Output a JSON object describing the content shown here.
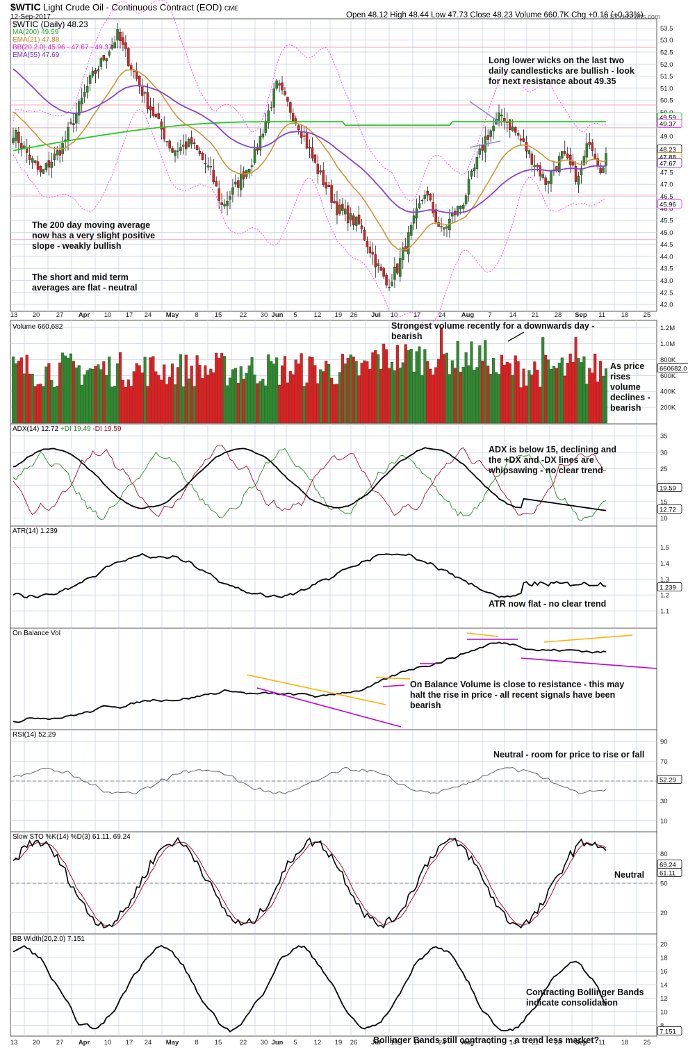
{
  "header": {
    "symbol": "$WTIC",
    "name": "Light Crude Oil - Continuous Contract (EOD)",
    "exchange": "CME",
    "date": "12-Sep-2017",
    "ohlc": "Open 48.12  High 48.44  Low 47.73  Close 48.23  Volume 660.7K  Chg +0.16 (+0.33%)",
    "watermark": "© StockCharts.com"
  },
  "colors": {
    "up": "#2e8b2e",
    "down": "#e02020",
    "ma200": "#22cc22",
    "ema21": "#cc9933",
    "ema55": "#8844cc",
    "bb": "#ff44ff",
    "grid": "#c8d4e4",
    "orange": "#ffb000",
    "purple": "#bb00dd"
  },
  "xaxis": {
    "labels": [
      "13",
      "20",
      "27",
      "Apr",
      "10",
      "17",
      "24",
      "May",
      "8",
      "15",
      "22",
      "30",
      "Jun",
      "5",
      "12",
      "19",
      "26",
      "Jul",
      "10",
      "17",
      "24",
      "Aug",
      "7",
      "14",
      "21",
      "28",
      "Sep",
      "11",
      "18",
      "25"
    ]
  },
  "price_panel": {
    "legend": [
      "$WTIC (Daily) 48.23",
      "MA(200) 49.59",
      "EMA(21) 47.88",
      "BB(20,2.0) 45.96 - 47.67 - 49.37",
      "EMA(55) 47.69"
    ],
    "ticks": [
      "53.5",
      "53.0",
      "52.5",
      "52.0",
      "51.5",
      "51.0",
      "50.5",
      "50.0",
      "49.5",
      "49.0",
      "48.5",
      "48.0",
      "47.5",
      "47.0",
      "46.5",
      "46.0",
      "45.5",
      "45.0",
      "44.5",
      "44.0",
      "43.5",
      "43.0",
      "42.5",
      "42.0"
    ],
    "tags": [
      "49.59",
      "49.37",
      "48.23",
      "47.88",
      "47.67",
      "45.96"
    ],
    "annotations": {
      "wicks": [
        "Long lower wicks on the last two",
        "daily candlesticks are bullish - look",
        "for next resistance about 49.35"
      ],
      "ma200": [
        "The 200 day moving average",
        "now has a very slight positive",
        "slope - weakly bullish"
      ],
      "short": [
        "The short and mid term",
        "averages are flat - neutral"
      ]
    }
  },
  "volume_panel": {
    "legend": "Volume 660,682",
    "ticks": [
      "1.2M",
      "1.0M",
      "800K",
      "600K",
      "400K",
      "200K"
    ],
    "tag": "660682.0",
    "annotations": {
      "strongest": [
        "Strongest volume recently for a downwards day -",
        "bearish"
      ],
      "rises": [
        "As price",
        "rises",
        "volume",
        "declines -",
        "bearish"
      ]
    }
  },
  "adx_panel": {
    "legend": [
      "ADX(14) 12.72",
      "+DI 19.49",
      "-DI 19.59"
    ],
    "ticks": [
      "35",
      "30",
      "25",
      "20",
      "15",
      "10"
    ],
    "tags": [
      "19.59",
      "12.72"
    ],
    "annotation": [
      "ADX is below 15, declining and",
      "the +DX and -DX lines are",
      "whipsawing - no clear trend"
    ]
  },
  "atr_panel": {
    "legend": "ATR(14) 1.239",
    "ticks": [
      "1.5",
      "1.4",
      "1.3",
      "1.2",
      "1.1"
    ],
    "tag": "1.239",
    "annotation": "ATR now flat - no clear trend"
  },
  "obv_panel": {
    "legend": "On Balance Vol",
    "annotation": [
      "On Balance Volume is close to resistance - this may",
      "halt the rise in price - all recent signals have been",
      "bearish"
    ]
  },
  "rsi_panel": {
    "legend": "RSI(14) 52.29",
    "ticks": [
      "90",
      "70",
      "50",
      "30",
      "10"
    ],
    "tag": "52.29",
    "annotation": "Neutral - room for price to rise or fall"
  },
  "sto_panel": {
    "legend": "Slow STO %K(14) %D(3) 61.11, 69.24",
    "ticks": [
      "80",
      "50",
      "20"
    ],
    "tags": [
      "69.24",
      "61.11"
    ],
    "annotation": "Neutral"
  },
  "bbw_panel": {
    "legend": "BB Width(20,2.0) 7.151",
    "ticks": [
      "20",
      "18",
      "16",
      "14",
      "12",
      "10",
      "8"
    ],
    "tag": "7.151",
    "annotations": {
      "contracting": [
        "Contracting Bollinger Bands",
        "indicate consolidation"
      ],
      "still": "Bollinger Bands still contracting - a trend less market?"
    }
  },
  "chart_data": {
    "type": "line",
    "title": "$WTIC Light Crude Oil - Continuous Contract (EOD)",
    "x": [
      "Mar 13",
      "Mar 20",
      "Mar 27",
      "Apr 3",
      "Apr 10",
      "Apr 17",
      "Apr 24",
      "May 1",
      "May 8",
      "May 15",
      "May 22",
      "May 30",
      "Jun 5",
      "Jun 12",
      "Jun 19",
      "Jun 26",
      "Jul 3",
      "Jul 10",
      "Jul 17",
      "Jul 24",
      "Aug 1",
      "Aug 7",
      "Aug 14",
      "Aug 21",
      "Aug 28",
      "Sep 5",
      "Sep 11"
    ],
    "series": [
      {
        "name": "$WTIC (Daily)",
        "values": [
          48.8,
          47.5,
          48.3,
          50.5,
          53.0,
          52.5,
          49.6,
          48.8,
          46.5,
          48.5,
          51.0,
          49.2,
          47.8,
          46.0,
          43.5,
          43.2,
          46.5,
          45.2,
          46.8,
          48.8,
          49.6,
          49.4,
          48.4,
          47.7,
          47.2,
          49.0,
          48.23
        ]
      },
      {
        "name": "MA(200)",
        "values": [
          48.5,
          48.6,
          48.7,
          48.8,
          49.0,
          49.1,
          49.2,
          49.3,
          49.4,
          49.4,
          49.4,
          49.6,
          49.6,
          49.5,
          49.4,
          49.2,
          49.0,
          49.0,
          49.2,
          49.3,
          49.4,
          49.5,
          49.4,
          49.5,
          49.6,
          49.6,
          49.59
        ]
      },
      {
        "name": "EMA(21)",
        "values": [
          49.7,
          48.4,
          48.1,
          49.0,
          51.0,
          51.3,
          50.6,
          49.6,
          48.6,
          48.0,
          49.6,
          49.5,
          49.0,
          47.6,
          45.5,
          45.0,
          45.3,
          45.5,
          46.0,
          47.4,
          48.3,
          48.6,
          48.2,
          48.0,
          47.5,
          47.8,
          47.88
        ]
      },
      {
        "name": "EMA(55)",
        "values": [
          51.4,
          50.3,
          50.0,
          50.1,
          50.6,
          50.9,
          50.8,
          50.3,
          49.8,
          49.6,
          49.8,
          49.9,
          49.7,
          48.9,
          47.7,
          47.0,
          46.6,
          46.4,
          46.5,
          46.9,
          47.5,
          47.8,
          47.7,
          47.5,
          47.3,
          47.6,
          47.69
        ]
      }
    ],
    "ylim": [
      41.8,
      53.8
    ],
    "xlabel": "",
    "ylabel": "",
    "grid": true,
    "legend_placement": "top-left"
  }
}
